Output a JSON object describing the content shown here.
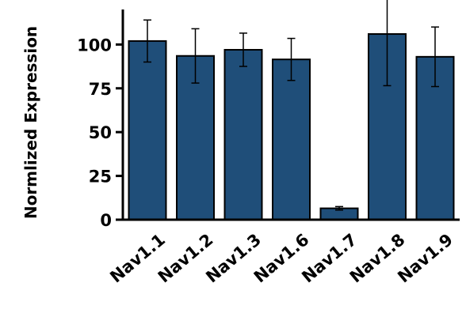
{
  "chart_data": {
    "type": "bar",
    "title": "",
    "xlabel": "",
    "ylabel": "Normlized Expression",
    "categories": [
      "Nav1.1",
      "Nav1.2",
      "Nav1.3",
      "Nav1.6",
      "Nav1.7",
      "Nav1.8",
      "Nav1.9"
    ],
    "values": [
      102,
      93.5,
      97,
      91.5,
      6.5,
      106,
      93
    ],
    "errors": [
      12,
      15.5,
      9.5,
      12,
      1,
      29.5,
      17
    ],
    "y_ticks": [
      0,
      25,
      50,
      75,
      100
    ],
    "ylim": [
      0,
      120
    ],
    "grid": false,
    "bar_color": "#1f4e79",
    "edge_color": "#000000"
  }
}
